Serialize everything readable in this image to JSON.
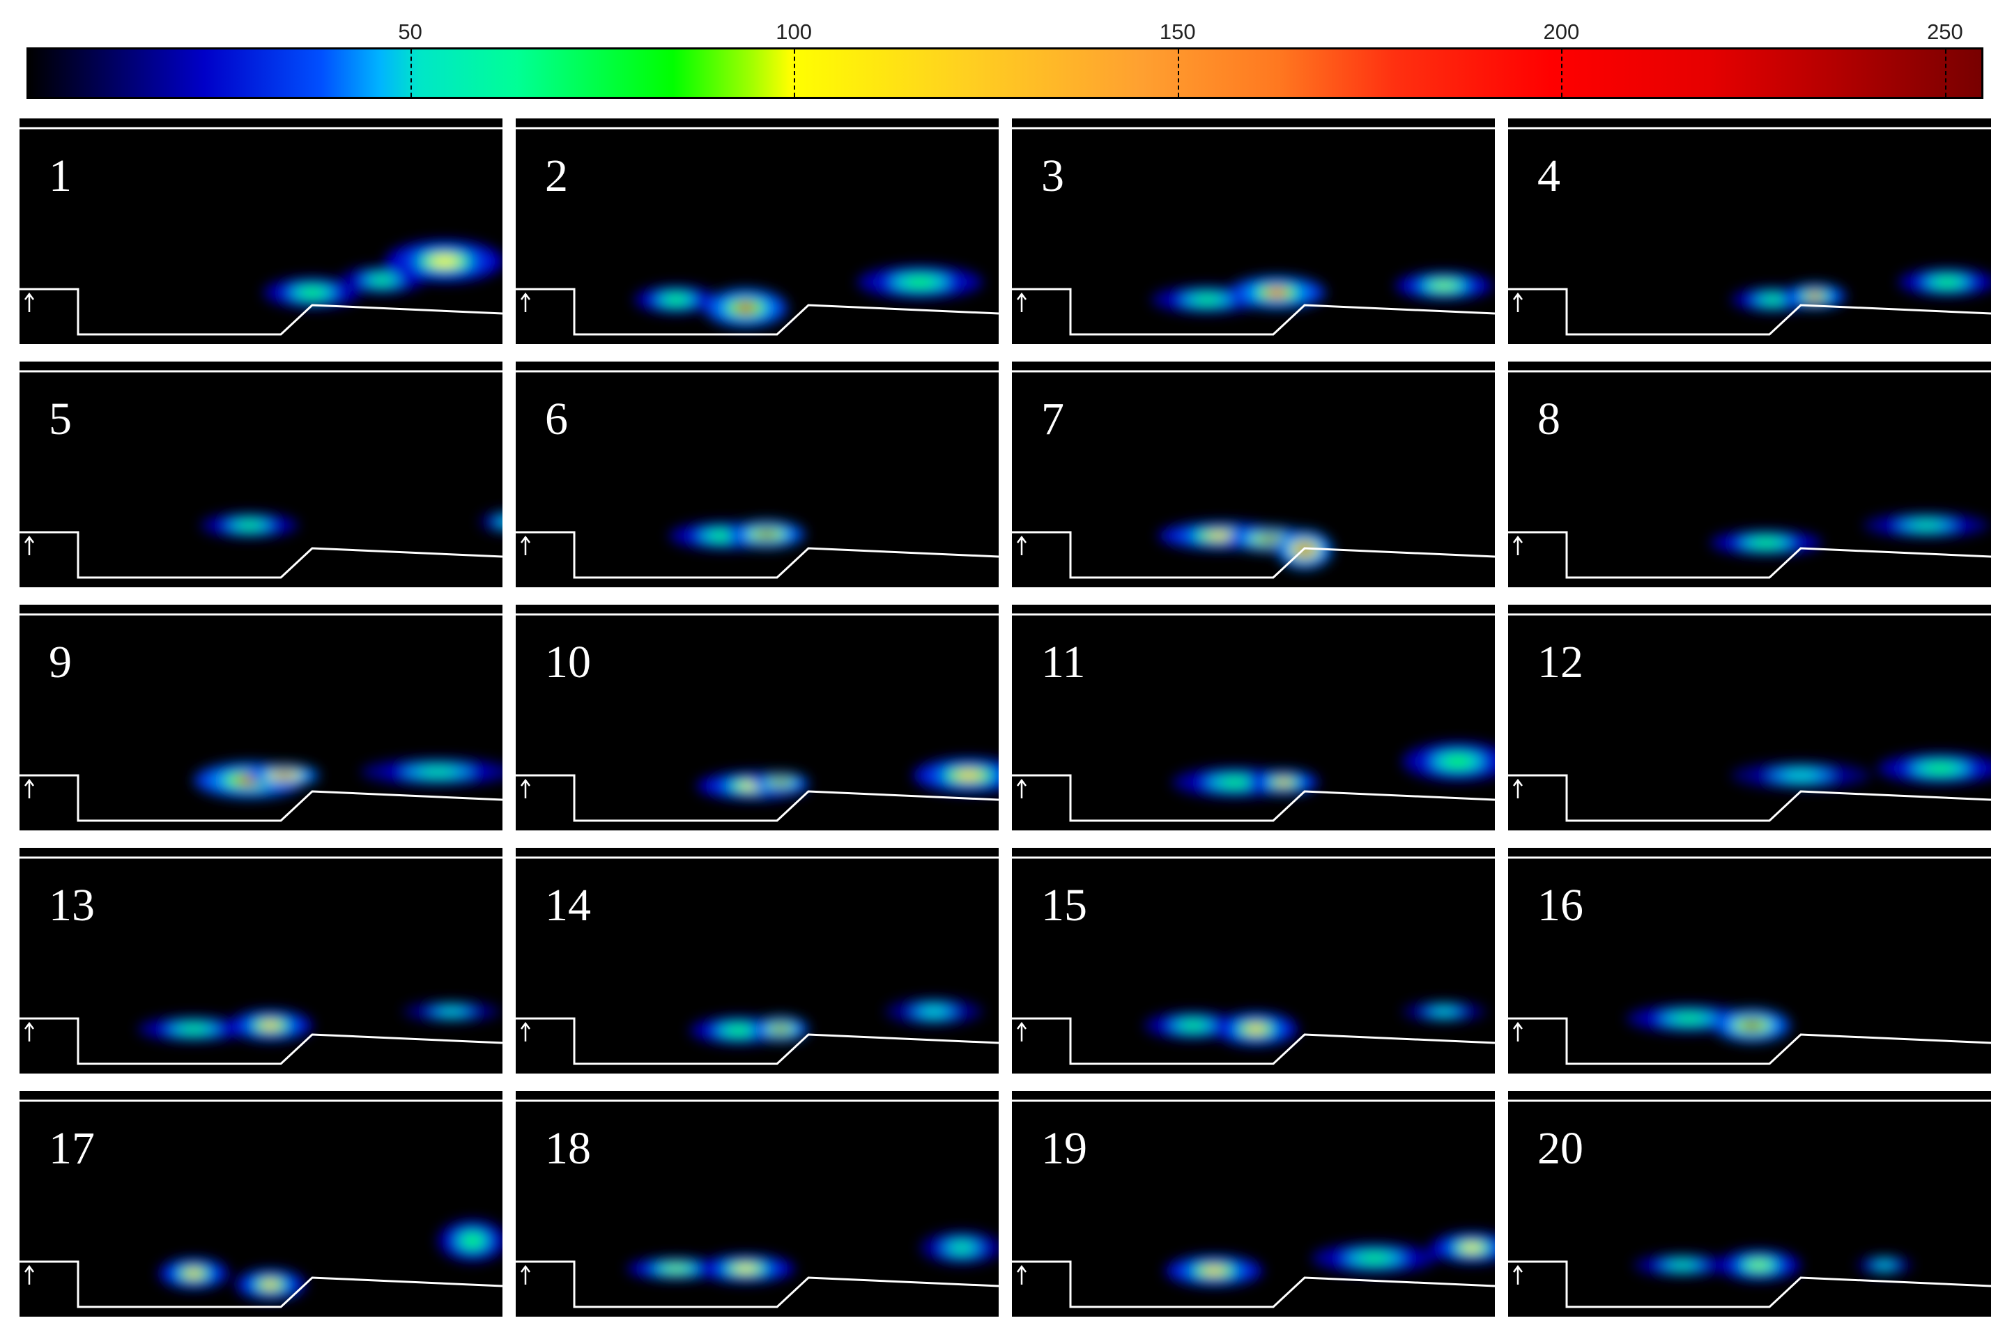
{
  "colorbar": {
    "ticks": [
      {
        "label": "50",
        "value": 50
      },
      {
        "label": "100",
        "value": 100
      },
      {
        "label": "150",
        "value": 150
      },
      {
        "label": "200",
        "value": 200
      },
      {
        "label": "250",
        "value": 250
      }
    ],
    "max_value": 255,
    "stops": [
      "#000000",
      "#0000c8",
      "#00e6c8",
      "#00ff00",
      "#ffff00",
      "#ffa030",
      "#ff0000",
      "#780000"
    ]
  },
  "panels": [
    {
      "label": "1"
    },
    {
      "label": "2"
    },
    {
      "label": "3"
    },
    {
      "label": "4"
    },
    {
      "label": "5"
    },
    {
      "label": "6"
    },
    {
      "label": "7"
    },
    {
      "label": "8"
    },
    {
      "label": "9"
    },
    {
      "label": "10"
    },
    {
      "label": "11"
    },
    {
      "label": "12"
    },
    {
      "label": "13"
    },
    {
      "label": "14"
    },
    {
      "label": "15"
    },
    {
      "label": "16"
    },
    {
      "label": "17"
    },
    {
      "label": "18"
    },
    {
      "label": "19"
    },
    {
      "label": "20"
    }
  ],
  "colors": {
    "background": "#000000",
    "outline": "#ffffff"
  }
}
